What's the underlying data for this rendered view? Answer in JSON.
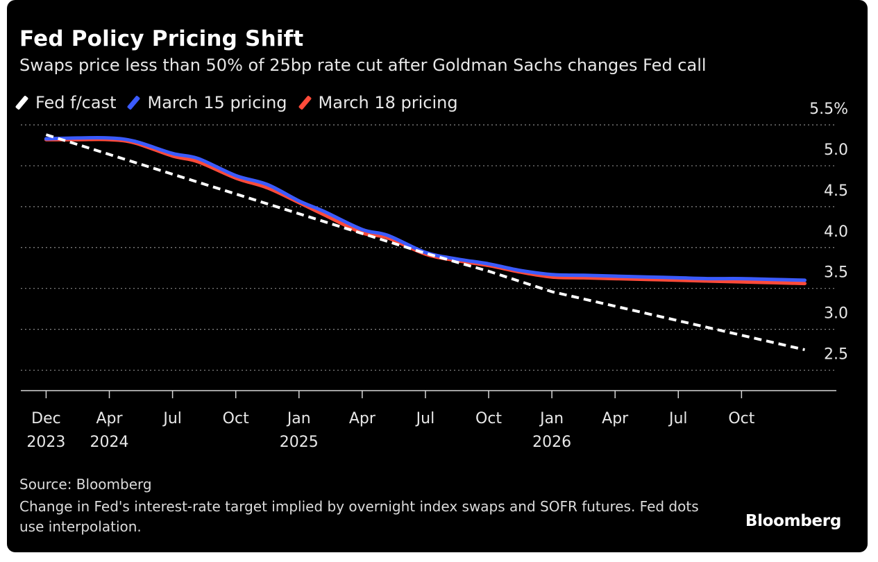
{
  "header": {
    "title": "Fed Policy Pricing Shift",
    "subtitle": "Swaps price less than 50% of 25bp rate cut after Goldman Sachs changes Fed call"
  },
  "legend": [
    {
      "label": "Fed f/cast",
      "color": "#ffffff"
    },
    {
      "label": "March 15 pricing",
      "color": "#3b5bff"
    },
    {
      "label": "March 18 pricing",
      "color": "#ff4b3a"
    }
  ],
  "footer": {
    "source": "Source: Bloomberg",
    "note": "Change in Fed's interest-rate target implied by overnight index swaps and SOFR futures. Fed dots use interpolation.",
    "brand": "Bloomberg"
  },
  "chart_data": {
    "type": "line",
    "title": "Fed Policy Pricing Shift",
    "xlabel": "",
    "ylabel": "",
    "x_unit": "months since Dec 2023",
    "xlim": [
      -0.4,
      12.5
    ],
    "ylim": [
      2.25,
      5.5
    ],
    "yticks": [
      {
        "value": 5.5,
        "label": "5.5%"
      },
      {
        "value": 5.0,
        "label": "5.0"
      },
      {
        "value": 4.5,
        "label": "4.5"
      },
      {
        "value": 4.0,
        "label": "4.0"
      },
      {
        "value": 3.5,
        "label": "3.5"
      },
      {
        "value": 3.0,
        "label": "3.0"
      },
      {
        "value": 2.5,
        "label": "2.5"
      }
    ],
    "xticks": [
      {
        "value": 0,
        "label": "Dec",
        "sub": "2023"
      },
      {
        "value": 1,
        "label": "Apr",
        "sub": "2024"
      },
      {
        "value": 2,
        "label": "Jul",
        "sub": ""
      },
      {
        "value": 3,
        "label": "Oct",
        "sub": ""
      },
      {
        "value": 4,
        "label": "Jan",
        "sub": "2025"
      },
      {
        "value": 5,
        "label": "Apr",
        "sub": ""
      },
      {
        "value": 6,
        "label": "Jul",
        "sub": ""
      },
      {
        "value": 7,
        "label": "Oct",
        "sub": ""
      },
      {
        "value": 8,
        "label": "Jan",
        "sub": "2026"
      },
      {
        "value": 9,
        "label": "Apr",
        "sub": ""
      },
      {
        "value": 10,
        "label": "Jul",
        "sub": ""
      },
      {
        "value": 11,
        "label": "Oct",
        "sub": ""
      }
    ],
    "grid": "dotted horizontal",
    "series": [
      {
        "name": "March 18 pricing",
        "color": "#ff4b3a",
        "dashed": false,
        "x": [
          0,
          0.5,
          1,
          1.4,
          2,
          2.4,
          3,
          3.5,
          4,
          4.4,
          5,
          5.4,
          6,
          6.5,
          7,
          7.5,
          8,
          8.5,
          9,
          9.5,
          10,
          10.5,
          11,
          11.5,
          12
        ],
        "y": [
          5.32,
          5.32,
          5.32,
          5.28,
          5.12,
          5.05,
          4.85,
          4.73,
          4.55,
          4.4,
          4.18,
          4.12,
          3.92,
          3.84,
          3.78,
          3.7,
          3.64,
          3.63,
          3.62,
          3.61,
          3.6,
          3.59,
          3.58,
          3.57,
          3.56
        ]
      },
      {
        "name": "March 15 pricing",
        "color": "#3b5bff",
        "dashed": false,
        "x": [
          0,
          0.5,
          1,
          1.4,
          2,
          2.4,
          3,
          3.5,
          4,
          4.4,
          5,
          5.4,
          6,
          6.5,
          7,
          7.5,
          8,
          8.5,
          9,
          9.5,
          10,
          10.5,
          11,
          11.5,
          12
        ],
        "y": [
          5.33,
          5.34,
          5.34,
          5.3,
          5.15,
          5.09,
          4.88,
          4.77,
          4.57,
          4.44,
          4.22,
          4.15,
          3.94,
          3.86,
          3.8,
          3.72,
          3.67,
          3.66,
          3.65,
          3.64,
          3.63,
          3.62,
          3.62,
          3.61,
          3.6
        ]
      },
      {
        "name": "Fed f/cast",
        "color": "#ffffff",
        "dashed": true,
        "x": [
          0,
          6,
          7,
          8,
          12
        ],
        "y": [
          5.38,
          3.93,
          3.71,
          3.46,
          2.75
        ]
      }
    ]
  }
}
